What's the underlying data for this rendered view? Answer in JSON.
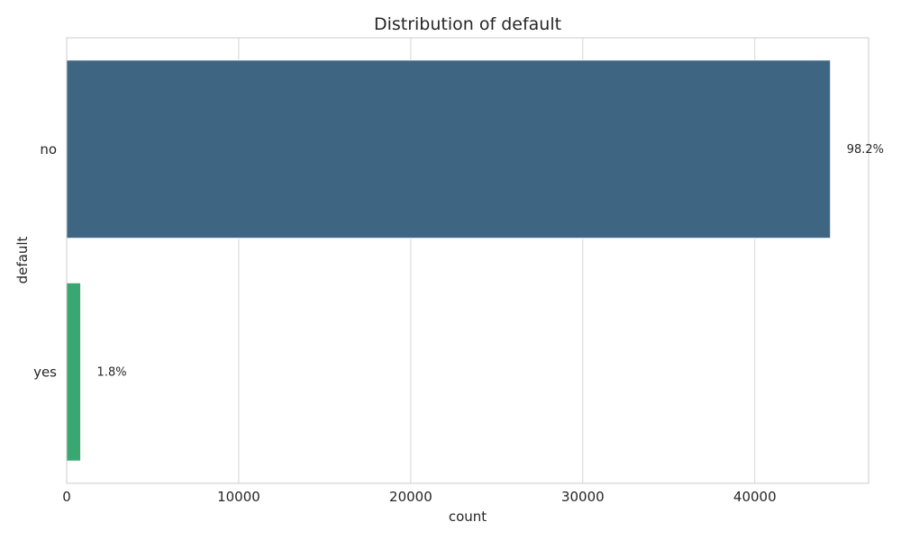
{
  "chart_data": {
    "type": "bar",
    "orientation": "horizontal",
    "title": "Distribution of default",
    "xlabel": "count",
    "ylabel": "default",
    "categories": [
      "no",
      "yes"
    ],
    "values": [
      44396,
      815
    ],
    "data_labels": [
      "98.2%",
      "1.8%"
    ],
    "colors": [
      "#3e6683",
      "#3aa672"
    ],
    "xlim": [
      0,
      46610
    ],
    "xticks": [
      0,
      10000,
      20000,
      30000,
      40000
    ],
    "xtick_labels": [
      "0",
      "10000",
      "20000",
      "30000",
      "40000"
    ],
    "grid": true,
    "legend": "none",
    "style": {
      "grid_color": "#d6d6d6",
      "frame_color": "#cccccc",
      "text_color": "#262626",
      "background": "#ffffff"
    }
  }
}
